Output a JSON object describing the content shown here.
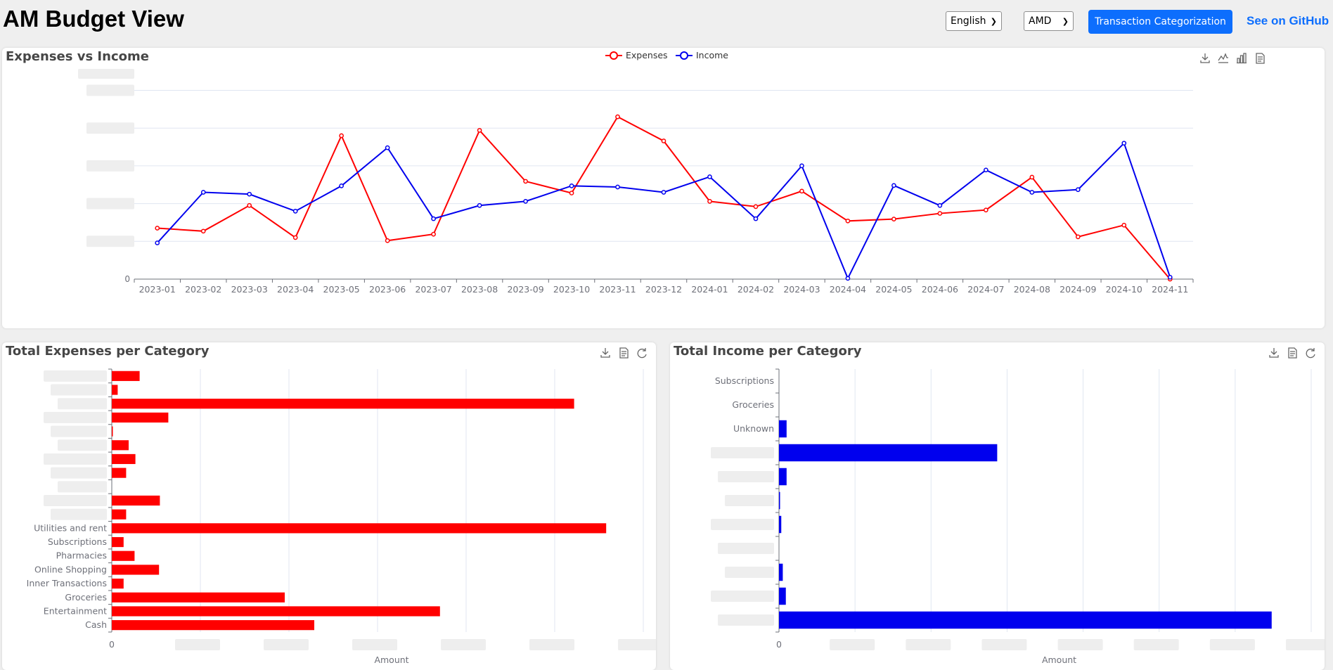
{
  "header": {
    "title": "AM Budget View",
    "language": "English",
    "currency": "AMD",
    "categorize_label": "Transaction Categorization",
    "github_label": "See on GitHub"
  },
  "colors": {
    "expenses": "#ff0000",
    "income": "#0000ee",
    "accent": "#0d6efd"
  },
  "panels": {
    "expenses_vs_income": {
      "title": "Expenses vs Income",
      "toolbar": [
        "download-icon",
        "line-chart-icon",
        "bar-chart-icon",
        "data-view-icon"
      ]
    },
    "expenses_per_category": {
      "title": "Total Expenses per Category",
      "toolbar": [
        "download-icon",
        "data-view-icon",
        "refresh-icon"
      ]
    },
    "income_per_category": {
      "title": "Total Income per Category",
      "toolbar": [
        "download-icon",
        "data-view-icon",
        "refresh-icon"
      ]
    }
  },
  "chart_data": [
    {
      "type": "line",
      "title": "Expenses vs Income",
      "x": [
        "2023-01",
        "2023-02",
        "2023-03",
        "2023-04",
        "2023-05",
        "2023-06",
        "2023-07",
        "2023-08",
        "2023-09",
        "2023-10",
        "2023-11",
        "2023-12",
        "2024-01",
        "2024-02",
        "2024-03",
        "2024-04",
        "2024-05",
        "2024-06",
        "2024-07",
        "2024-08",
        "2024-09",
        "2024-10",
        "2024-11"
      ],
      "y_tick_labels": [
        "0"
      ],
      "y_scale_note": "Only the 0 tick label is legible; other y tick labels are blurred. Values below are relative (one grid step = 1).",
      "legend_position": "top-center",
      "grid": true,
      "ylim": [
        0,
        5
      ],
      "series": [
        {
          "name": "Expenses",
          "color": "#ff0000",
          "values": [
            1.35,
            1.27,
            1.95,
            1.1,
            3.8,
            1.02,
            1.19,
            3.94,
            2.59,
            2.28,
            4.3,
            3.66,
            2.06,
            1.92,
            2.33,
            1.54,
            1.59,
            1.74,
            1.83,
            2.7,
            1.12,
            1.43,
            0.0
          ]
        },
        {
          "name": "Income",
          "color": "#0000ee",
          "values": [
            0.96,
            2.3,
            2.25,
            1.8,
            2.47,
            3.48,
            1.6,
            1.95,
            2.06,
            2.47,
            2.44,
            2.3,
            2.71,
            1.6,
            3.0,
            0.02,
            2.48,
            1.95,
            2.89,
            2.3,
            2.37,
            3.6,
            0.05
          ]
        }
      ]
    },
    {
      "type": "bar",
      "orientation": "horizontal",
      "title": "Total Expenses per Category",
      "xlabel": "Amount",
      "x_tick_labels": [
        "0"
      ],
      "grid": true,
      "categories": [
        "",
        "",
        "",
        "",
        "",
        "",
        "",
        "",
        "",
        "",
        "",
        "Utilities and rent",
        "Subscriptions",
        "Pharmacies",
        "Online Shopping",
        "Inner Transactions",
        "Groceries",
        "Entertainment",
        "Cash"
      ],
      "values": [
        0.33,
        0.07,
        5.48,
        0.67,
        0.01,
        0.2,
        0.28,
        0.17,
        0.0,
        0.57,
        0.17,
        5.86,
        0.14,
        0.27,
        0.56,
        0.14,
        2.05,
        3.89,
        2.4
      ],
      "xlim": [
        0,
        6.3
      ],
      "color": "#ff0000"
    },
    {
      "type": "bar",
      "orientation": "horizontal",
      "title": "Total Income per Category",
      "xlabel": "Amount",
      "x_tick_labels": [
        "0"
      ],
      "grid": true,
      "categories": [
        "Subscriptions",
        "Groceries",
        "Unknown",
        "",
        "",
        "",
        "",
        "",
        "",
        "",
        ""
      ],
      "values": [
        0.0,
        0.0,
        0.1,
        2.87,
        0.1,
        0.01,
        0.03,
        0.0,
        0.05,
        0.09,
        6.48
      ],
      "xlim": [
        0,
        7.0
      ],
      "color": "#0000ee"
    }
  ]
}
